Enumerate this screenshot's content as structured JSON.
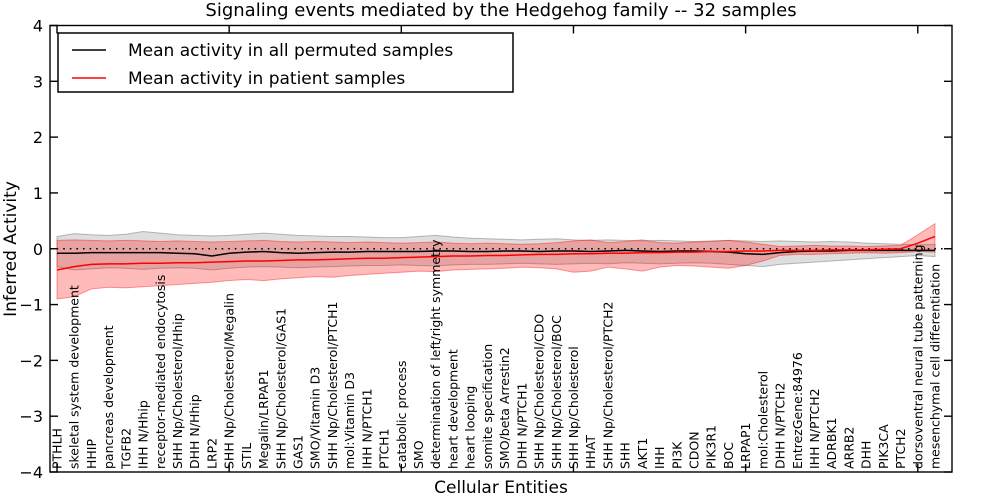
{
  "chart_data": {
    "type": "line",
    "title": "Signaling events mediated by the Hedgehog family -- 32 samples",
    "xlabel": "Cellular Entities",
    "ylabel": "Inferred Activity",
    "ylim": [
      -4,
      4
    ],
    "yticks": [
      -4,
      -3,
      -2,
      -1,
      0,
      1,
      2,
      3,
      4
    ],
    "x_major_tick_indices": [
      0,
      10,
      20,
      30,
      40,
      50
    ],
    "grid": false,
    "zero_reference_line": "dotted",
    "legend_position": "upper-left",
    "categories": [
      "PTHLH",
      "skeletal system development",
      "HHIP",
      "pancreas development",
      "TGFB2",
      "IHH N/Hhip",
      "receptor-mediated endocytosis",
      "SHH Np/Cholesterol/Hhip",
      "DHH N/Hhip",
      "LRP2",
      "SHH Np/Cholesterol/Megalin",
      "STIL",
      "Megalin/LRPAP1",
      "SHH Np/Cholesterol/GAS1",
      "GAS1",
      "SMO/Vitamin D3",
      "SHH Np/Cholesterol/PTCH1",
      "mol:Vitamin D3",
      "IHH N/PTCH1",
      "PTCH1",
      "catabolic process",
      "SMO",
      "determination of left/right symmetry",
      "heart development",
      "heart looping",
      "somite specification",
      "SMO/beta Arrestin2",
      "DHH N/PTCH1",
      "SHH Np/Cholesterol/CDO",
      "SHH Np/Cholesterol/BOC",
      "SHH Np/Cholesterol",
      "HHAT",
      "SHH Np/Cholesterol/PTCH2",
      "SHH",
      "AKT1",
      "IHH",
      "PI3K",
      "CDON",
      "PIK3R1",
      "BOC",
      "LRPAP1",
      "mol:Cholesterol",
      "DHH N/PTCH2",
      "EntrezGene:84976",
      "IHH N/PTCH2",
      "ADRBK1",
      "ARRB2",
      "DHH",
      "PIK3CA",
      "PTCH2",
      "dorsoventral neural tube patterning",
      "mesenchymal cell differentiation"
    ],
    "series": [
      {
        "name": "Mean activity in all permuted samples",
        "color": "#000000",
        "band_color": "#000000",
        "band_opacity": 0.13,
        "values": [
          -0.08,
          -0.08,
          -0.07,
          -0.07,
          -0.07,
          -0.07,
          -0.07,
          -0.08,
          -0.09,
          -0.13,
          -0.08,
          -0.06,
          -0.05,
          -0.07,
          -0.08,
          -0.07,
          -0.06,
          -0.06,
          -0.05,
          -0.05,
          -0.05,
          -0.05,
          -0.04,
          -0.04,
          -0.05,
          -0.05,
          -0.04,
          -0.04,
          -0.05,
          -0.04,
          -0.04,
          -0.05,
          -0.04,
          -0.03,
          -0.04,
          -0.05,
          -0.04,
          -0.04,
          -0.05,
          -0.06,
          -0.09,
          -0.1,
          -0.07,
          -0.05,
          -0.04,
          -0.04,
          -0.03,
          -0.03,
          -0.03,
          -0.03,
          -0.03,
          -0.03
        ],
        "band_upper": [
          0.22,
          0.27,
          0.25,
          0.24,
          0.26,
          0.31,
          0.28,
          0.25,
          0.24,
          0.23,
          0.24,
          0.26,
          0.28,
          0.26,
          0.24,
          0.23,
          0.22,
          0.22,
          0.21,
          0.2,
          0.2,
          0.22,
          0.24,
          0.21,
          0.19,
          0.18,
          0.17,
          0.16,
          0.17,
          0.18,
          0.16,
          0.15,
          0.16,
          0.15,
          0.14,
          0.15,
          0.14,
          0.13,
          0.14,
          0.15,
          0.14,
          0.13,
          0.14,
          0.13,
          0.12,
          0.13,
          0.12,
          0.1,
          0.09,
          0.08,
          0.07,
          0.08
        ],
        "band_lower": [
          -0.32,
          -0.38,
          -0.36,
          -0.34,
          -0.35,
          -0.37,
          -0.35,
          -0.34,
          -0.35,
          -0.38,
          -0.35,
          -0.33,
          -0.32,
          -0.33,
          -0.34,
          -0.33,
          -0.32,
          -0.31,
          -0.3,
          -0.3,
          -0.29,
          -0.3,
          -0.31,
          -0.29,
          -0.28,
          -0.28,
          -0.27,
          -0.26,
          -0.27,
          -0.28,
          -0.27,
          -0.26,
          -0.27,
          -0.25,
          -0.26,
          -0.27,
          -0.26,
          -0.25,
          -0.26,
          -0.28,
          -0.3,
          -0.32,
          -0.28,
          -0.26,
          -0.24,
          -0.22,
          -0.2,
          -0.18,
          -0.16,
          -0.14,
          -0.12,
          -0.14
        ]
      },
      {
        "name": "Mean activity in patient samples",
        "color": "#ff0000",
        "band_color": "#ff0000",
        "band_opacity": 0.27,
        "values": [
          -0.38,
          -0.32,
          -0.28,
          -0.27,
          -0.27,
          -0.26,
          -0.26,
          -0.25,
          -0.25,
          -0.24,
          -0.23,
          -0.22,
          -0.22,
          -0.21,
          -0.2,
          -0.2,
          -0.19,
          -0.18,
          -0.17,
          -0.17,
          -0.16,
          -0.15,
          -0.14,
          -0.13,
          -0.13,
          -0.12,
          -0.12,
          -0.11,
          -0.1,
          -0.1,
          -0.09,
          -0.09,
          -0.08,
          -0.08,
          -0.07,
          -0.07,
          -0.06,
          -0.06,
          -0.05,
          -0.05,
          -0.04,
          -0.04,
          -0.03,
          -0.03,
          -0.03,
          -0.02,
          -0.02,
          -0.02,
          -0.01,
          0.0,
          0.1,
          0.22
        ],
        "band_upper": [
          0.15,
          0.16,
          0.15,
          0.14,
          0.15,
          0.14,
          0.13,
          0.14,
          0.13,
          0.12,
          0.13,
          0.14,
          0.15,
          0.13,
          0.12,
          0.13,
          0.12,
          0.11,
          0.12,
          0.11,
          0.1,
          0.11,
          0.12,
          0.1,
          0.09,
          0.1,
          0.09,
          0.08,
          0.09,
          0.11,
          0.14,
          0.16,
          0.11,
          0.13,
          0.16,
          0.11,
          0.1,
          0.12,
          0.13,
          0.15,
          0.12,
          0.08,
          0.04,
          0.05,
          0.06,
          0.05,
          0.05,
          0.04,
          0.05,
          0.06,
          0.25,
          0.45
        ],
        "band_lower": [
          -0.9,
          -0.86,
          -0.72,
          -0.69,
          -0.7,
          -0.68,
          -0.66,
          -0.64,
          -0.62,
          -0.6,
          -0.57,
          -0.55,
          -0.57,
          -0.54,
          -0.52,
          -0.5,
          -0.51,
          -0.48,
          -0.46,
          -0.44,
          -0.42,
          -0.4,
          -0.41,
          -0.38,
          -0.37,
          -0.36,
          -0.35,
          -0.33,
          -0.34,
          -0.36,
          -0.42,
          -0.4,
          -0.33,
          -0.36,
          -0.4,
          -0.33,
          -0.3,
          -0.31,
          -0.33,
          -0.35,
          -0.3,
          -0.22,
          -0.12,
          -0.1,
          -0.1,
          -0.09,
          -0.08,
          -0.07,
          -0.08,
          -0.07,
          -0.05,
          -0.06
        ]
      }
    ]
  }
}
